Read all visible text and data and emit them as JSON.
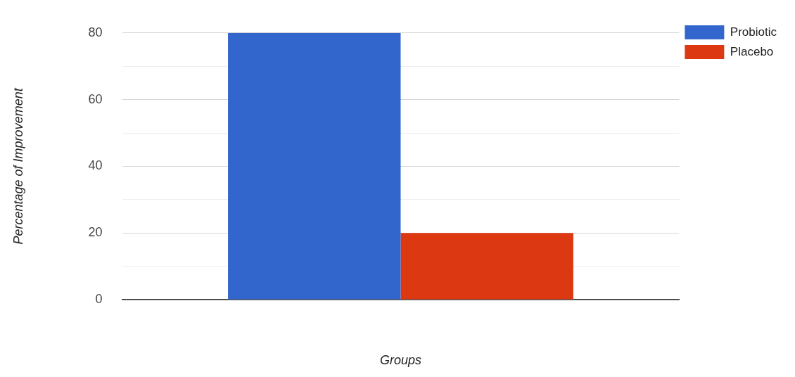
{
  "chart_data": {
    "type": "bar",
    "xlabel": "Groups",
    "ylabel": "Percentage of Improvement",
    "categories": [
      null
    ],
    "series": [
      {
        "name": "Probiotic",
        "color": "#3366cc",
        "values": [
          80
        ]
      },
      {
        "name": "Placebo",
        "color": "#dc3912",
        "values": [
          20
        ]
      }
    ],
    "ylim": [
      0,
      80
    ],
    "yticks": [
      0,
      {
        "value": 10,
        "label": null
      },
      20,
      {
        "value": 30,
        "label": null
      },
      40,
      {
        "value": 50,
        "label": null
      },
      60,
      {
        "value": 70,
        "label": null
      },
      80
    ],
    "grid": "y",
    "legend": "top right"
  }
}
